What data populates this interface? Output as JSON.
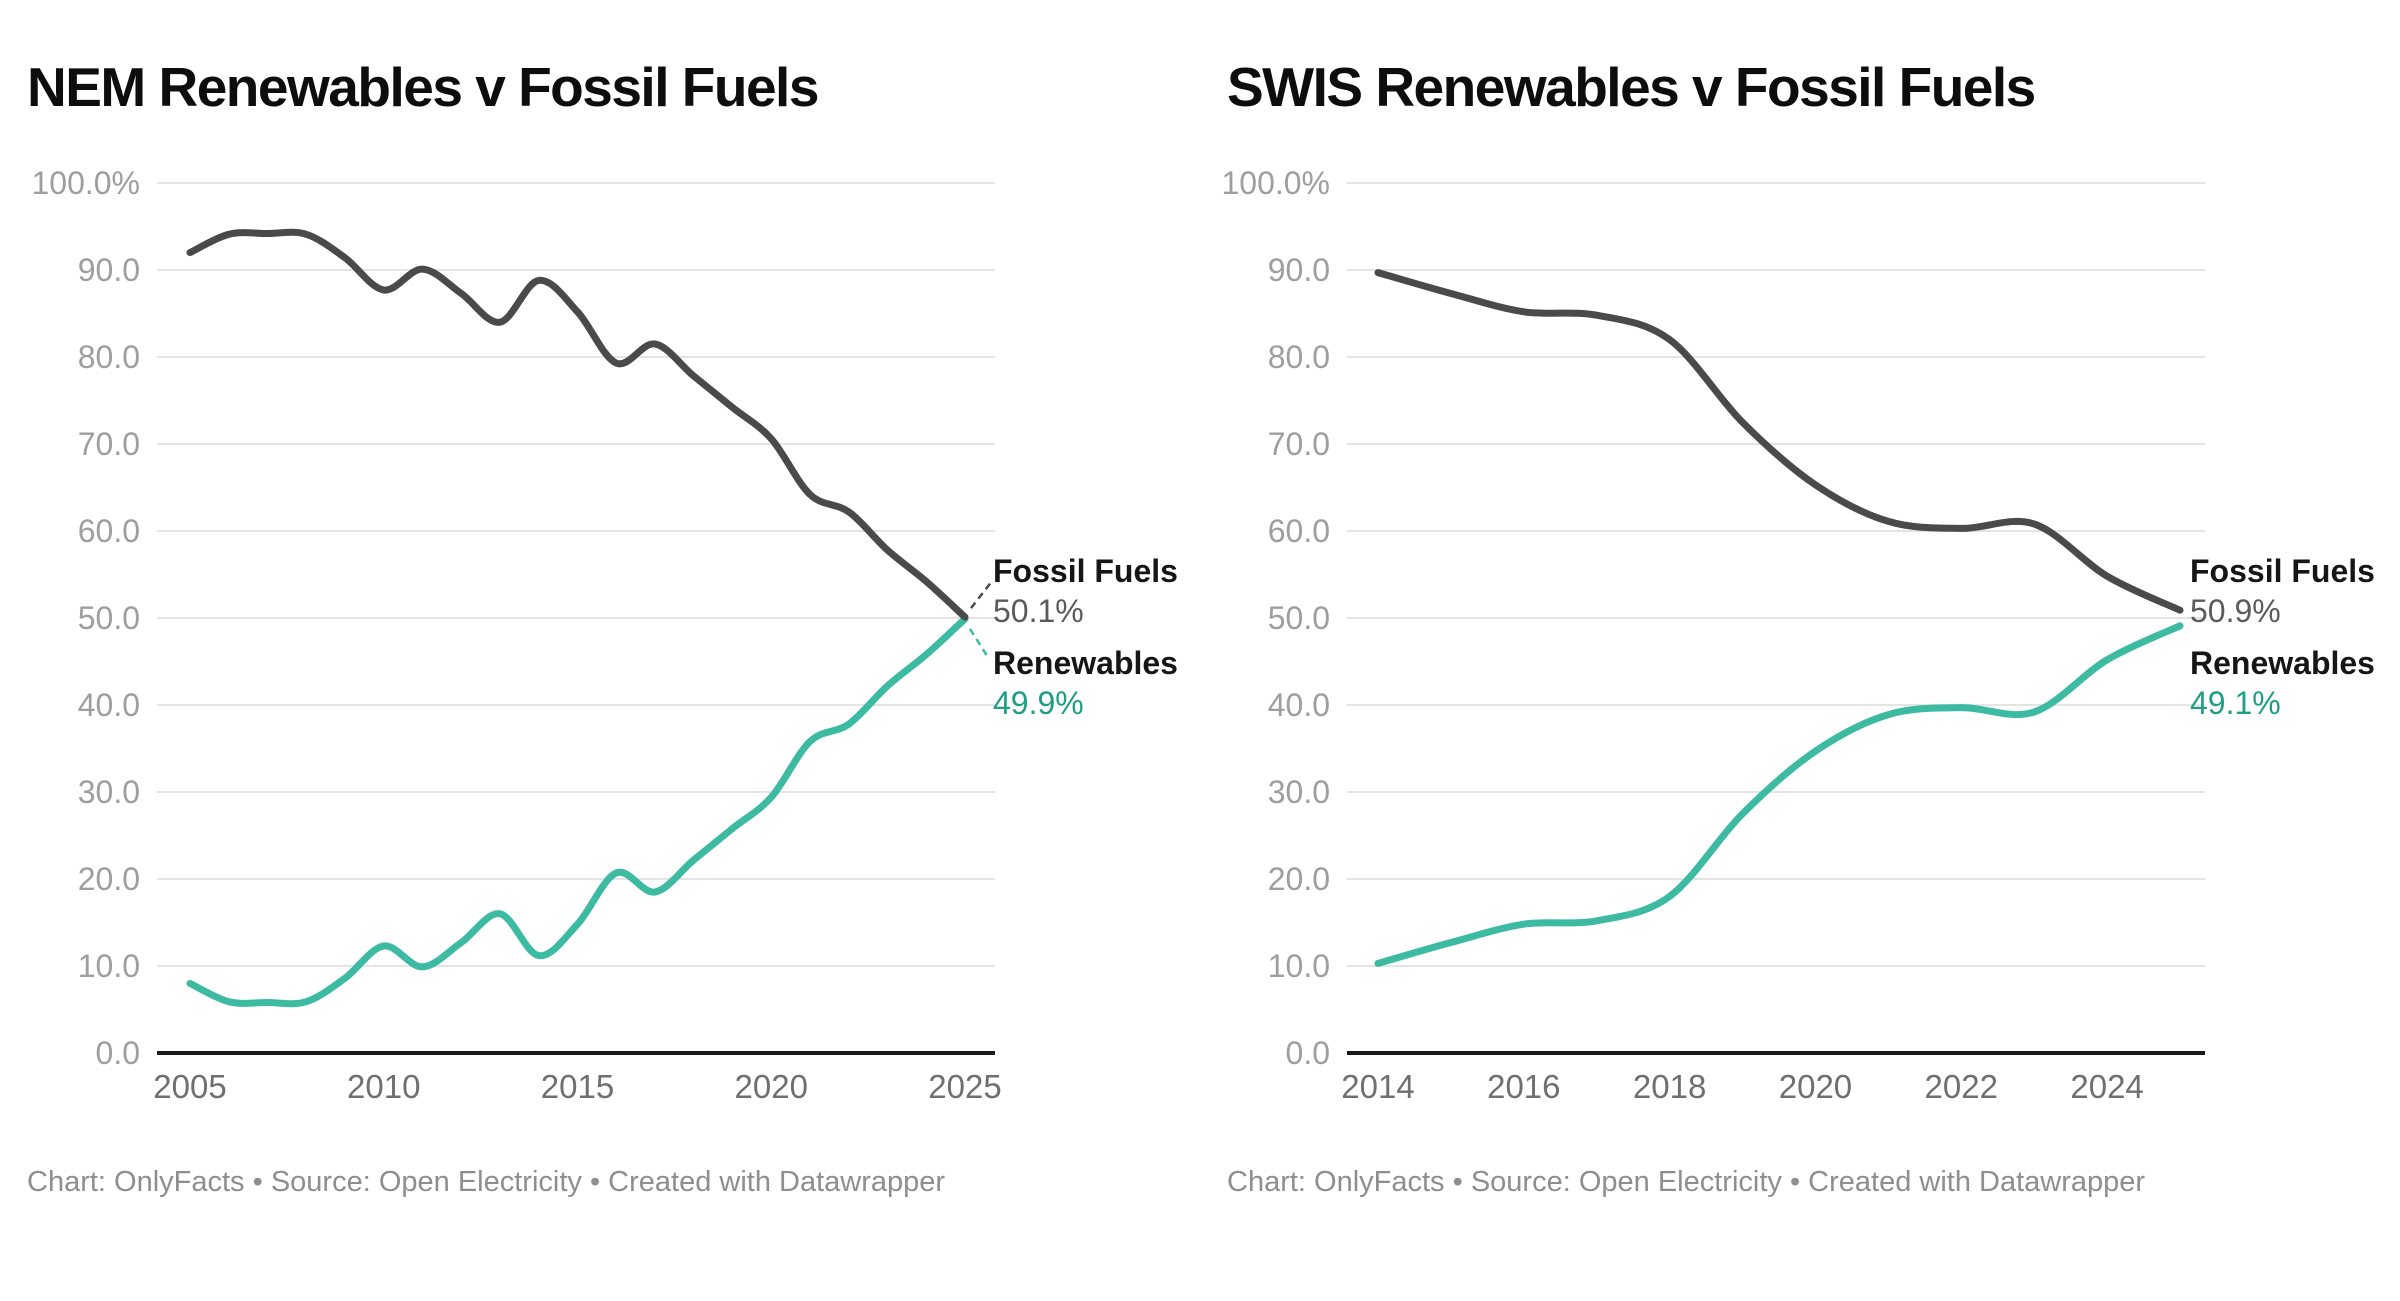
{
  "chart_data": [
    {
      "type": "line",
      "title": "NEM Renewables v Fossil Fuels",
      "footer": "Chart: OnlyFacts • Source: Open Electricity • Created with Datawrapper",
      "xlabel": "",
      "ylabel": "",
      "ylim": [
        0,
        100
      ],
      "grid": "horizontal",
      "legend_position": "end-of-line labels (right of plot)",
      "x": [
        2005,
        2006,
        2007,
        2008,
        2009,
        2010,
        2011,
        2012,
        2013,
        2014,
        2015,
        2016,
        2017,
        2018,
        2019,
        2020,
        2021,
        2022,
        2023,
        2024,
        2025
      ],
      "x_ticks": [
        "2005",
        "2010",
        "2015",
        "2020",
        "2025"
      ],
      "x_tick_years": [
        2005,
        2010,
        2015,
        2020,
        2025
      ],
      "y_ticks": [
        "100.0%",
        "90.0",
        "80.0",
        "70.0",
        "60.0",
        "50.0",
        "40.0",
        "30.0",
        "20.0",
        "10.0",
        "0.0"
      ],
      "series": [
        {
          "name": "Fossil Fuels",
          "color": "#4a4a4a",
          "values": [
            92.0,
            94.1,
            94.2,
            94.1,
            91.4,
            87.7,
            90.1,
            87.3,
            84.0,
            88.8,
            85.2,
            79.3,
            81.5,
            77.8,
            74.2,
            70.6,
            64.2,
            62.2,
            57.8,
            54.2,
            50.1
          ]
        },
        {
          "name": "Renewables",
          "color": "#3cbba2",
          "values": [
            8.0,
            5.9,
            5.8,
            5.9,
            8.6,
            12.3,
            9.9,
            12.7,
            16.0,
            11.2,
            14.8,
            20.7,
            18.5,
            22.2,
            25.8,
            29.4,
            35.8,
            37.8,
            42.2,
            45.8,
            49.9
          ]
        }
      ],
      "end_labels": [
        {
          "name": "Fossil Fuels",
          "value": "50.1%",
          "value_color": "#5b5b5b"
        },
        {
          "name": "Renewables",
          "value": "49.9%",
          "value_color": "#1f9e85"
        }
      ],
      "leader_lines": true,
      "colors": {
        "grid": "#e4e4e4",
        "axis": "#1a1a1a",
        "y_labels": "#9e9e9e",
        "x_labels": "#6f6f6f"
      }
    },
    {
      "type": "line",
      "title": "SWIS Renewables v Fossil Fuels",
      "footer": "Chart: OnlyFacts • Source: Open Electricity • Created with Datawrapper",
      "xlabel": "",
      "ylabel": "",
      "ylim": [
        0,
        100
      ],
      "grid": "horizontal",
      "legend_position": "end-of-line labels (right of plot)",
      "x": [
        2014,
        2015,
        2016,
        2017,
        2018,
        2019,
        2020,
        2021,
        2022,
        2023,
        2024,
        2025
      ],
      "x_ticks": [
        "2014",
        "2016",
        "2018",
        "2020",
        "2022",
        "2024"
      ],
      "x_tick_years": [
        2014,
        2016,
        2018,
        2020,
        2022,
        2024
      ],
      "y_ticks": [
        "100.0%",
        "90.0",
        "80.0",
        "70.0",
        "60.0",
        "50.0",
        "40.0",
        "30.0",
        "20.0",
        "10.0",
        "0.0"
      ],
      "series": [
        {
          "name": "Fossil Fuels",
          "color": "#4a4a4a",
          "values": [
            89.7,
            87.3,
            85.2,
            84.8,
            82.0,
            72.5,
            65.3,
            61.1,
            60.3,
            60.8,
            54.8,
            50.9
          ]
        },
        {
          "name": "Renewables",
          "color": "#3cbba2",
          "values": [
            10.3,
            12.7,
            14.8,
            15.2,
            18.0,
            27.5,
            34.7,
            38.9,
            39.7,
            39.2,
            45.2,
            49.1
          ]
        }
      ],
      "end_labels": [
        {
          "name": "Fossil Fuels",
          "value": "50.9%",
          "value_color": "#5b5b5b"
        },
        {
          "name": "Renewables",
          "value": "49.1%",
          "value_color": "#1f9e85"
        }
      ],
      "leader_lines": false,
      "colors": {
        "grid": "#e4e4e4",
        "axis": "#1a1a1a",
        "y_labels": "#9e9e9e",
        "x_labels": "#6f6f6f"
      }
    }
  ]
}
